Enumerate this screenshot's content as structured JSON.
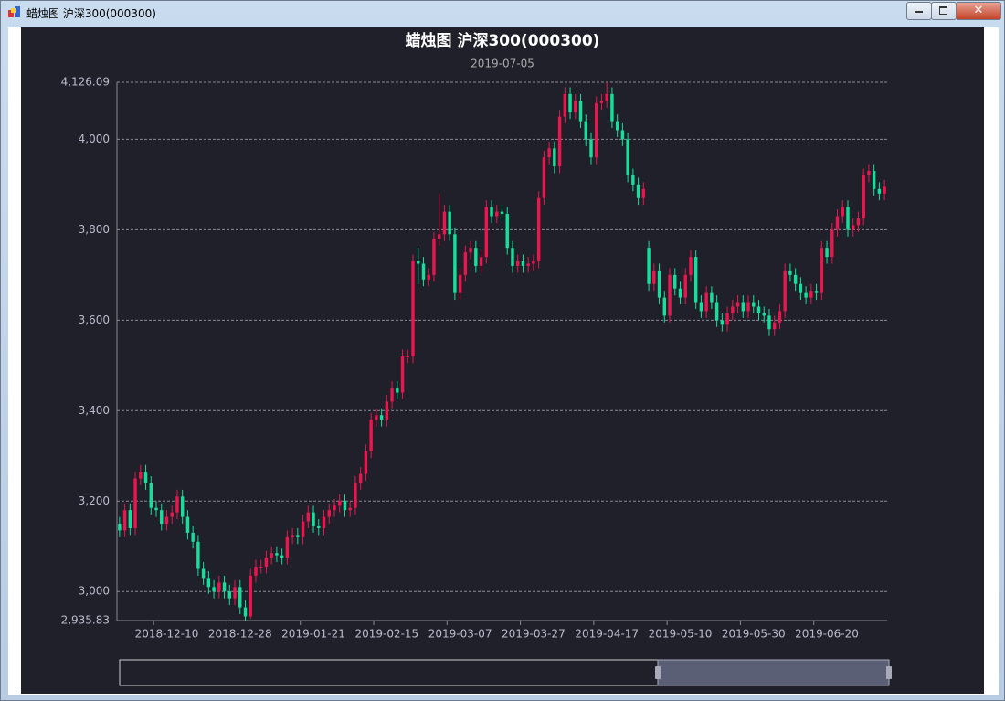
{
  "window": {
    "title": "蜡烛图 沪深300(000300)"
  },
  "chart_data": {
    "type": "candlestick",
    "title": "蜡烛图 沪深300(000300)",
    "subtitle": "2019-07-05",
    "categories": [
      null,
      null,
      null,
      null,
      null,
      null,
      null,
      null,
      null,
      "2018-12-10",
      null,
      null,
      null,
      null,
      null,
      null,
      null,
      null,
      null,
      null,
      null,
      null,
      null,
      "2018-12-28",
      null,
      null,
      null,
      null,
      null,
      null,
      null,
      null,
      null,
      null,
      null,
      null,
      null,
      "2019-01-21",
      null,
      null,
      null,
      null,
      null,
      null,
      null,
      null,
      null,
      null,
      null,
      null,
      null,
      "2019-02-15",
      null,
      null,
      null,
      null,
      null,
      null,
      null,
      null,
      null,
      null,
      null,
      null,
      null,
      "2019-03-07",
      null,
      null,
      null,
      null,
      null,
      null,
      null,
      null,
      null,
      null,
      null,
      null,
      null,
      "2019-03-27",
      null,
      null,
      null,
      null,
      null,
      null,
      null,
      null,
      null,
      null,
      null,
      null,
      null,
      "2019-04-17",
      null,
      null,
      null,
      null,
      null,
      null,
      null,
      null,
      null,
      null,
      null,
      null,
      null,
      "2019-05-10",
      null,
      null,
      null,
      null,
      null,
      null,
      null,
      null,
      null,
      null,
      null,
      null,
      null,
      "2019-05-30",
      null,
      null,
      null,
      null,
      null,
      null,
      null,
      null,
      null,
      null,
      null,
      null,
      null,
      "2019-06-20",
      null,
      null,
      null,
      null,
      null,
      null,
      null,
      null,
      null,
      null,
      null
    ],
    "open": [
      3150,
      3135,
      3180,
      3140,
      3250,
      3265,
      3240,
      3185,
      3180,
      3150,
      3165,
      3175,
      3210,
      3165,
      3130,
      3110,
      3050,
      3030,
      3010,
      3000,
      3020,
      3000,
      2985,
      3010,
      2965,
      2945,
      3035,
      3055,
      3055,
      3075,
      3085,
      3080,
      3075,
      3120,
      3125,
      3120,
      3155,
      3175,
      3145,
      3140,
      3165,
      3180,
      3190,
      3200,
      3180,
      3185,
      3240,
      3260,
      3310,
      3380,
      3390,
      3380,
      3420,
      3450,
      3440,
      3520,
      3520,
      3730,
      3725,
      3690,
      3700,
      3780,
      3790,
      3840,
      3790,
      3660,
      3700,
      3750,
      3760,
      3720,
      3740,
      3850,
      3830,
      3840,
      3835,
      3760,
      3720,
      3730,
      3720,
      3725,
      3730,
      3870,
      3960,
      3980,
      3940,
      4050,
      4100,
      4060,
      4085,
      4040,
      4000,
      3960,
      4080,
      4085,
      4100,
      4040,
      4020,
      4000,
      3920,
      3900,
      3870,
      3760,
      3680,
      3710,
      3650,
      3610,
      3700,
      3670,
      3650,
      3700,
      3740,
      3640,
      3620,
      3660,
      3640,
      3600,
      3590,
      3615,
      3630,
      3640,
      3620,
      3640,
      3630,
      3615,
      3610,
      3580,
      3595,
      3620,
      3710,
      3700,
      3680,
      3660,
      3650,
      3665,
      3660,
      3760,
      3740,
      3800,
      3830,
      3850,
      3800,
      3810,
      3825,
      3920,
      3930,
      3890,
      3880
    ],
    "close": [
      3135,
      3180,
      3140,
      3250,
      3265,
      3240,
      3185,
      3180,
      3150,
      3165,
      3175,
      3210,
      3165,
      3130,
      3110,
      3050,
      3030,
      3010,
      3000,
      3020,
      3000,
      2985,
      3010,
      2965,
      2945,
      3035,
      3055,
      3055,
      3075,
      3085,
      3080,
      3075,
      3120,
      3125,
      3120,
      3155,
      3175,
      3145,
      3140,
      3165,
      3180,
      3190,
      3200,
      3180,
      3185,
      3240,
      3260,
      3310,
      3380,
      3390,
      3380,
      3420,
      3450,
      3440,
      3520,
      3520,
      3730,
      3725,
      3690,
      3700,
      3780,
      3790,
      3840,
      3790,
      3660,
      3700,
      3750,
      3760,
      3720,
      3740,
      3850,
      3830,
      3840,
      3835,
      3760,
      3720,
      3730,
      3720,
      3725,
      3730,
      3870,
      3960,
      3980,
      3940,
      4050,
      4100,
      4060,
      4085,
      4040,
      4000,
      3960,
      4080,
      4085,
      4100,
      4040,
      4020,
      4000,
      3920,
      3900,
      3870,
      3890,
      3680,
      3710,
      3650,
      3610,
      3700,
      3670,
      3650,
      3700,
      3740,
      3640,
      3620,
      3660,
      3640,
      3600,
      3590,
      3615,
      3630,
      3640,
      3620,
      3640,
      3630,
      3615,
      3610,
      3580,
      3595,
      3620,
      3710,
      3700,
      3680,
      3660,
      3650,
      3665,
      3660,
      3760,
      3740,
      3800,
      3830,
      3850,
      3800,
      3810,
      3825,
      3920,
      3930,
      3890,
      3880,
      3895
    ],
    "high": [
      3165,
      3195,
      3195,
      3265,
      3280,
      3280,
      3255,
      3200,
      3195,
      3180,
      3190,
      3225,
      3225,
      3180,
      3145,
      3125,
      3065,
      3045,
      3025,
      3035,
      3035,
      3015,
      3025,
      3025,
      2980,
      3050,
      3070,
      3070,
      3090,
      3100,
      3100,
      3095,
      3135,
      3140,
      3140,
      3170,
      3190,
      3190,
      3160,
      3180,
      3195,
      3205,
      3215,
      3215,
      3200,
      3255,
      3275,
      3325,
      3395,
      3405,
      3405,
      3435,
      3465,
      3465,
      3535,
      3535,
      3745,
      3760,
      3740,
      3715,
      3795,
      3880,
      3855,
      3855,
      3805,
      3715,
      3765,
      3775,
      3775,
      3755,
      3865,
      3865,
      3855,
      3855,
      3850,
      3775,
      3745,
      3745,
      3740,
      3745,
      3885,
      3975,
      3995,
      3995,
      4065,
      4115,
      4115,
      4100,
      4100,
      4055,
      4015,
      4095,
      4100,
      4126.09,
      4115,
      4055,
      4035,
      4015,
      3935,
      3915,
      3905,
      3775,
      3725,
      3725,
      3665,
      3715,
      3715,
      3685,
      3715,
      3755,
      3755,
      3655,
      3675,
      3675,
      3655,
      3615,
      3630,
      3645,
      3655,
      3655,
      3655,
      3655,
      3645,
      3630,
      3625,
      3610,
      3635,
      3725,
      3725,
      3715,
      3695,
      3675,
      3680,
      3680,
      3775,
      3775,
      3815,
      3845,
      3865,
      3865,
      3825,
      3840,
      3935,
      3945,
      3945,
      3905,
      3910
    ],
    "low": [
      3120,
      3120,
      3125,
      3125,
      3235,
      3225,
      3170,
      3165,
      3135,
      3135,
      3150,
      3160,
      3150,
      3115,
      3095,
      3035,
      3015,
      2995,
      2985,
      2985,
      2985,
      2970,
      2970,
      2950,
      2935.83,
      2940,
      3020,
      3040,
      3040,
      3060,
      3065,
      3060,
      3060,
      3105,
      3105,
      3105,
      3140,
      3130,
      3125,
      3125,
      3150,
      3165,
      3175,
      3165,
      3165,
      3170,
      3225,
      3245,
      3295,
      3365,
      3365,
      3365,
      3405,
      3425,
      3425,
      3505,
      3505,
      3680,
      3675,
      3675,
      3685,
      3765,
      3775,
      3775,
      3645,
      3645,
      3685,
      3735,
      3705,
      3705,
      3725,
      3815,
      3815,
      3820,
      3745,
      3705,
      3705,
      3705,
      3705,
      3710,
      3715,
      3855,
      3945,
      3925,
      3925,
      4035,
      4045,
      4045,
      4025,
      3985,
      3945,
      3945,
      4065,
      4070,
      4025,
      4005,
      3985,
      3905,
      3885,
      3855,
      3855,
      3665,
      3665,
      3635,
      3595,
      3595,
      3655,
      3635,
      3635,
      3685,
      3625,
      3605,
      3605,
      3625,
      3585,
      3575,
      3575,
      3600,
      3615,
      3605,
      3605,
      3615,
      3600,
      3595,
      3565,
      3565,
      3580,
      3605,
      3685,
      3665,
      3645,
      3635,
      3635,
      3645,
      3645,
      3725,
      3725,
      3785,
      3815,
      3785,
      3785,
      3795,
      3810,
      3905,
      3875,
      3865,
      3865
    ],
    "up_color": "#e8174d",
    "down_color": "#14e09b",
    "ylim": [
      2935.83,
      4126.09
    ],
    "yticks": [
      {
        "value": 2935.83,
        "label": "2,935.83"
      },
      {
        "value": 3000,
        "label": "3,000"
      },
      {
        "value": 3200,
        "label": "3,200"
      },
      {
        "value": 3400,
        "label": "3,400"
      },
      {
        "value": 3600,
        "label": "3,600"
      },
      {
        "value": 3800,
        "label": "3,800"
      },
      {
        "value": 4000,
        "label": "4,000"
      },
      {
        "value": 4126.09,
        "label": "4,126.09"
      }
    ],
    "grid": true
  }
}
